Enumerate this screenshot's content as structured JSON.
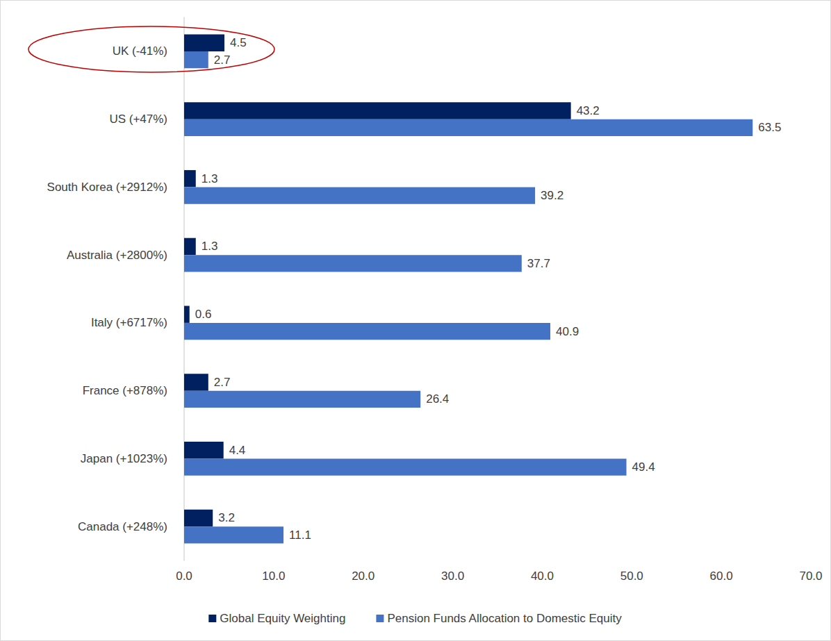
{
  "chart_data": {
    "type": "bar",
    "orientation": "horizontal",
    "categories": [
      "UK (-41%)",
      "US (+47%)",
      "South Korea (+2912%)",
      "Australia (+2800%)",
      "Italy (+6717%)",
      "France (+878%)",
      "Japan (+1023%)",
      "Canada (+248%)"
    ],
    "series": [
      {
        "name": "Global Equity Weighting",
        "color": "#002060",
        "values": [
          4.5,
          43.2,
          1.3,
          1.3,
          0.6,
          2.7,
          4.4,
          3.2
        ]
      },
      {
        "name": "Pension Funds Allocation to Domestic Equity",
        "color": "#4472c4",
        "values": [
          2.7,
          63.5,
          39.2,
          37.7,
          40.9,
          26.4,
          49.4,
          11.1
        ]
      }
    ],
    "xlim": [
      0,
      70
    ],
    "xticks": [
      {
        "value": 0,
        "label": "0.0"
      },
      {
        "value": 10,
        "label": "10.0"
      },
      {
        "value": 20,
        "label": "20.0"
      },
      {
        "value": 30,
        "label": "30.0"
      },
      {
        "value": 40,
        "label": "40.0"
      },
      {
        "value": 50,
        "label": "50.0"
      },
      {
        "value": 60,
        "label": "60.0"
      },
      {
        "value": 70,
        "label": "70.0"
      }
    ],
    "grid": false,
    "legend": "bottom",
    "data_labels": true
  }
}
